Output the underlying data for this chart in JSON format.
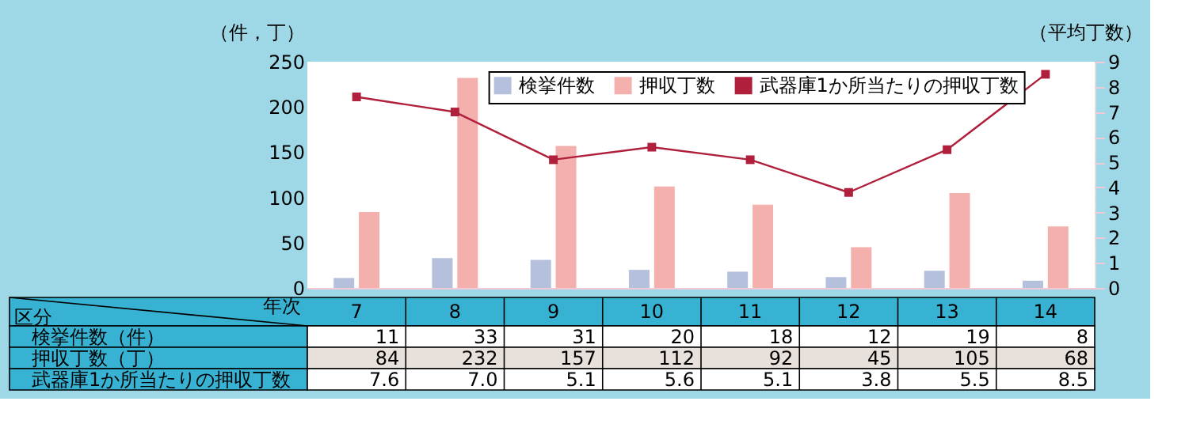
{
  "chart_data": {
    "type": "bar",
    "categories": [
      "7",
      "8",
      "9",
      "10",
      "11",
      "12",
      "13",
      "14"
    ],
    "series": [
      {
        "name": "検挙件数",
        "color": "#b4c0dc",
        "values": [
          11,
          33,
          31,
          20,
          18,
          12,
          19,
          8
        ]
      },
      {
        "name": "押収丁数",
        "color": "#f4b0ac",
        "values": [
          84,
          232,
          157,
          112,
          92,
          45,
          105,
          68
        ]
      },
      {
        "name": "武器庫1か所当たりの押収丁数",
        "type": "line",
        "axis": "y2",
        "color": "#b0203c",
        "marker": "square",
        "values": [
          7.6,
          7.0,
          5.1,
          5.6,
          5.1,
          3.8,
          5.5,
          8.5
        ],
        "value_labels": [
          "7.6",
          "7.0",
          "5.1",
          "5.6",
          "5.1",
          "3.8",
          "5.5",
          "8.5"
        ]
      }
    ],
    "ylabel": "（件，丁）",
    "y2label": "（平均丁数）",
    "ylim": [
      0,
      250
    ],
    "yticks": [
      0,
      50,
      100,
      150,
      200,
      250
    ],
    "y2lim": [
      0,
      9
    ],
    "y2ticks": [
      0,
      1,
      2,
      3,
      4,
      5,
      6,
      7,
      8,
      9
    ],
    "grid": "y",
    "legend": "top right",
    "data_labels": true,
    "annotations": [
      "区分",
      "年次",
      "検挙件数（件）",
      "押収丁数（丁）"
    ]
  }
}
